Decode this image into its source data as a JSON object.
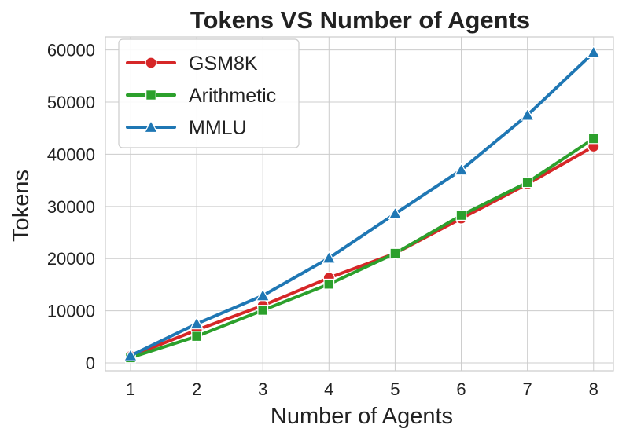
{
  "chart_data": {
    "type": "line",
    "title": "Tokens VS Number of Agents",
    "xlabel": "Number of Agents",
    "ylabel": "Tokens",
    "x": [
      1,
      2,
      3,
      4,
      5,
      6,
      7,
      8
    ],
    "xlim": [
      0.62,
      8.3
    ],
    "ylim": [
      -1500,
      62500
    ],
    "xticks": [
      "1",
      "2",
      "3",
      "4",
      "5",
      "6",
      "7",
      "8"
    ],
    "yticks": [
      0,
      10000,
      20000,
      30000,
      40000,
      50000,
      60000
    ],
    "ytick_labels": [
      "0",
      "10000",
      "20000",
      "30000",
      "40000",
      "50000",
      "60000"
    ],
    "grid": true,
    "legend_position": "top-left",
    "series": [
      {
        "name": "GSM8K",
        "color": "#d62728",
        "marker": "circle",
        "values": [
          1300,
          6300,
          11000,
          16300,
          21000,
          27700,
          34300,
          41500
        ]
      },
      {
        "name": "Arithmetic",
        "color": "#2ca02c",
        "marker": "square",
        "values": [
          1000,
          5100,
          10100,
          15100,
          21000,
          28300,
          34600,
          43000
        ]
      },
      {
        "name": "MMLU",
        "color": "#1f77b4",
        "marker": "triangle",
        "values": [
          1400,
          7500,
          12900,
          20100,
          28600,
          37000,
          47500,
          59500
        ]
      }
    ]
  }
}
